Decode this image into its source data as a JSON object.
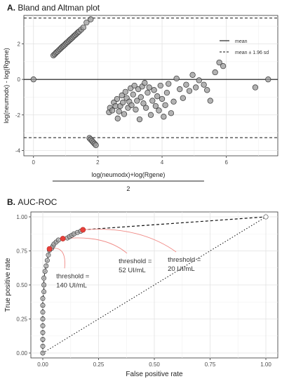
{
  "panels": {
    "a_title_letter": "A.",
    "a_title_text": "Bland and Altman plot",
    "b_title_letter": "B.",
    "b_title_text": "AUC-ROC"
  },
  "chart_data": [
    {
      "type": "scatter",
      "title": "Bland and Altman plot",
      "xlabel_numerator": "log(neumodx)+log(Rgene)",
      "xlabel_denominator": "2",
      "ylabel": "log(neumodx) - log(Rgene)",
      "xlim": [
        -0.3,
        7.6
      ],
      "ylim": [
        -4.3,
        3.6
      ],
      "xticks": [
        0,
        2,
        4,
        6
      ],
      "yticks": [
        -4,
        -2,
        0,
        2
      ],
      "grid": true,
      "legend_position": "top-right",
      "legend": [
        {
          "label": "mean",
          "style": "solid"
        },
        {
          "label": "mean ± 1.96 sd",
          "style": "dashed"
        }
      ],
      "mean": 0,
      "upper_limit": 3.45,
      "lower_limit": -3.28,
      "point_color": "#999999",
      "series": [
        {
          "values": [
            [
              0.0,
              0.0
            ],
            [
              0.62,
              1.35
            ],
            [
              0.66,
              1.42
            ],
            [
              0.7,
              1.5
            ],
            [
              0.74,
              1.56
            ],
            [
              0.78,
              1.63
            ],
            [
              0.82,
              1.7
            ],
            [
              0.86,
              1.77
            ],
            [
              0.9,
              1.84
            ],
            [
              0.94,
              1.9
            ],
            [
              0.98,
              1.97
            ],
            [
              1.02,
              2.04
            ],
            [
              1.06,
              2.1
            ],
            [
              1.1,
              2.17
            ],
            [
              1.14,
              2.24
            ],
            [
              1.18,
              2.3
            ],
            [
              1.22,
              2.37
            ],
            [
              1.26,
              2.44
            ],
            [
              1.3,
              2.5
            ],
            [
              1.34,
              2.57
            ],
            [
              1.38,
              2.64
            ],
            [
              1.42,
              2.7
            ],
            [
              1.48,
              2.8
            ],
            [
              1.55,
              2.92
            ],
            [
              1.65,
              3.2
            ],
            [
              1.78,
              3.38
            ],
            [
              1.74,
              -3.3
            ],
            [
              1.78,
              -3.38
            ],
            [
              1.82,
              -3.46
            ],
            [
              1.86,
              -3.54
            ],
            [
              1.9,
              -3.62
            ],
            [
              1.94,
              -3.7
            ],
            [
              2.35,
              -1.85
            ],
            [
              2.38,
              -1.6
            ],
            [
              2.45,
              -1.75
            ],
            [
              2.5,
              -1.3
            ],
            [
              2.55,
              -1.5
            ],
            [
              2.6,
              -1.1
            ],
            [
              2.62,
              -2.2
            ],
            [
              2.66,
              -1.8
            ],
            [
              2.7,
              -1.5
            ],
            [
              2.75,
              -0.9
            ],
            [
              2.78,
              -1.3
            ],
            [
              2.82,
              -1.95
            ],
            [
              2.86,
              -0.7
            ],
            [
              2.9,
              -1.05
            ],
            [
              2.94,
              -1.6
            ],
            [
              2.98,
              -1.25
            ],
            [
              3.02,
              -0.5
            ],
            [
              3.05,
              -1.45
            ],
            [
              3.1,
              -0.85
            ],
            [
              3.14,
              -0.35
            ],
            [
              3.18,
              -1.7
            ],
            [
              3.22,
              -1.2
            ],
            [
              3.26,
              -0.55
            ],
            [
              3.3,
              -2.25
            ],
            [
              3.34,
              -1.0
            ],
            [
              3.38,
              -0.4
            ],
            [
              3.42,
              -1.35
            ],
            [
              3.46,
              -0.2
            ],
            [
              3.5,
              -1.6
            ],
            [
              3.55,
              -0.75
            ],
            [
              3.6,
              -0.45
            ],
            [
              3.65,
              -2.0
            ],
            [
              3.7,
              -1.2
            ],
            [
              3.75,
              -0.6
            ],
            [
              3.8,
              -1.5
            ],
            [
              3.85,
              -0.95
            ],
            [
              3.9,
              -1.75
            ],
            [
              3.95,
              -0.35
            ],
            [
              4.0,
              -1.1
            ],
            [
              4.05,
              -2.1
            ],
            [
              4.1,
              -1.45
            ],
            [
              4.15,
              -0.75
            ],
            [
              4.2,
              -0.25
            ],
            [
              4.28,
              -1.9
            ],
            [
              4.36,
              -1.25
            ],
            [
              4.45,
              0.05
            ],
            [
              4.55,
              -0.55
            ],
            [
              4.65,
              -1.05
            ],
            [
              4.75,
              -0.3
            ],
            [
              4.85,
              -0.65
            ],
            [
              4.95,
              0.25
            ],
            [
              5.05,
              -0.45
            ],
            [
              5.15,
              -0.05
            ],
            [
              5.3,
              -0.3
            ],
            [
              5.4,
              -0.6
            ],
            [
              5.5,
              -1.2
            ],
            [
              5.65,
              0.4
            ],
            [
              5.78,
              0.95
            ],
            [
              5.9,
              0.75
            ],
            [
              6.9,
              -0.45
            ],
            [
              7.3,
              0.0
            ]
          ]
        }
      ]
    },
    {
      "type": "line",
      "title": "AUC-ROC",
      "xlabel": "False positive rate",
      "ylabel": "True positive rate",
      "xlim": [
        0,
        1
      ],
      "ylim": [
        0,
        1
      ],
      "xticks": [
        "0.00",
        "0.25",
        "0.50",
        "0.75",
        "1.00"
      ],
      "yticks": [
        "0.00",
        "0.25",
        "0.50",
        "0.75",
        "1.00"
      ],
      "grid": true,
      "roc_curve": [
        [
          0.0,
          0.0
        ],
        [
          0.0,
          0.05
        ],
        [
          0.0,
          0.1
        ],
        [
          0.0,
          0.15
        ],
        [
          0.0,
          0.2
        ],
        [
          0.0,
          0.25
        ],
        [
          0.0,
          0.3
        ],
        [
          0.0,
          0.35
        ],
        [
          0.0,
          0.4
        ],
        [
          0.005,
          0.45
        ],
        [
          0.005,
          0.5
        ],
        [
          0.005,
          0.55
        ],
        [
          0.01,
          0.6
        ],
        [
          0.015,
          0.64
        ],
        [
          0.02,
          0.68
        ],
        [
          0.025,
          0.72
        ],
        [
          0.03,
          0.755
        ],
        [
          0.04,
          0.77
        ],
        [
          0.045,
          0.785
        ],
        [
          0.05,
          0.8
        ],
        [
          0.06,
          0.815
        ],
        [
          0.07,
          0.83
        ],
        [
          0.09,
          0.84
        ],
        [
          0.11,
          0.845
        ],
        [
          0.12,
          0.855
        ],
        [
          0.13,
          0.865
        ],
        [
          0.14,
          0.875
        ],
        [
          0.155,
          0.885
        ],
        [
          0.17,
          0.895
        ],
        [
          0.18,
          0.905
        ],
        [
          1.0,
          1.0
        ]
      ],
      "extension_line": [
        [
          0.18,
          0.905
        ],
        [
          1.0,
          1.0
        ]
      ],
      "chance_line": [
        [
          0.0,
          0.0
        ],
        [
          1.0,
          1.0
        ]
      ],
      "point_color": "#aaaaaa",
      "highlight_color": "#e8403a",
      "threshold_points": [
        [
          0.03,
          0.765
        ],
        [
          0.09,
          0.84
        ],
        [
          0.18,
          0.905
        ]
      ],
      "annotations": [
        {
          "lines": [
            "threshold =",
            "140 UI/mL"
          ],
          "at": [
            0.03,
            0.765
          ]
        },
        {
          "lines": [
            "threshold =",
            "52 UI/mL"
          ],
          "at": [
            0.09,
            0.84
          ]
        },
        {
          "lines": [
            "threshold =",
            "20 UI/mL"
          ],
          "at": [
            0.18,
            0.905
          ]
        }
      ]
    }
  ]
}
